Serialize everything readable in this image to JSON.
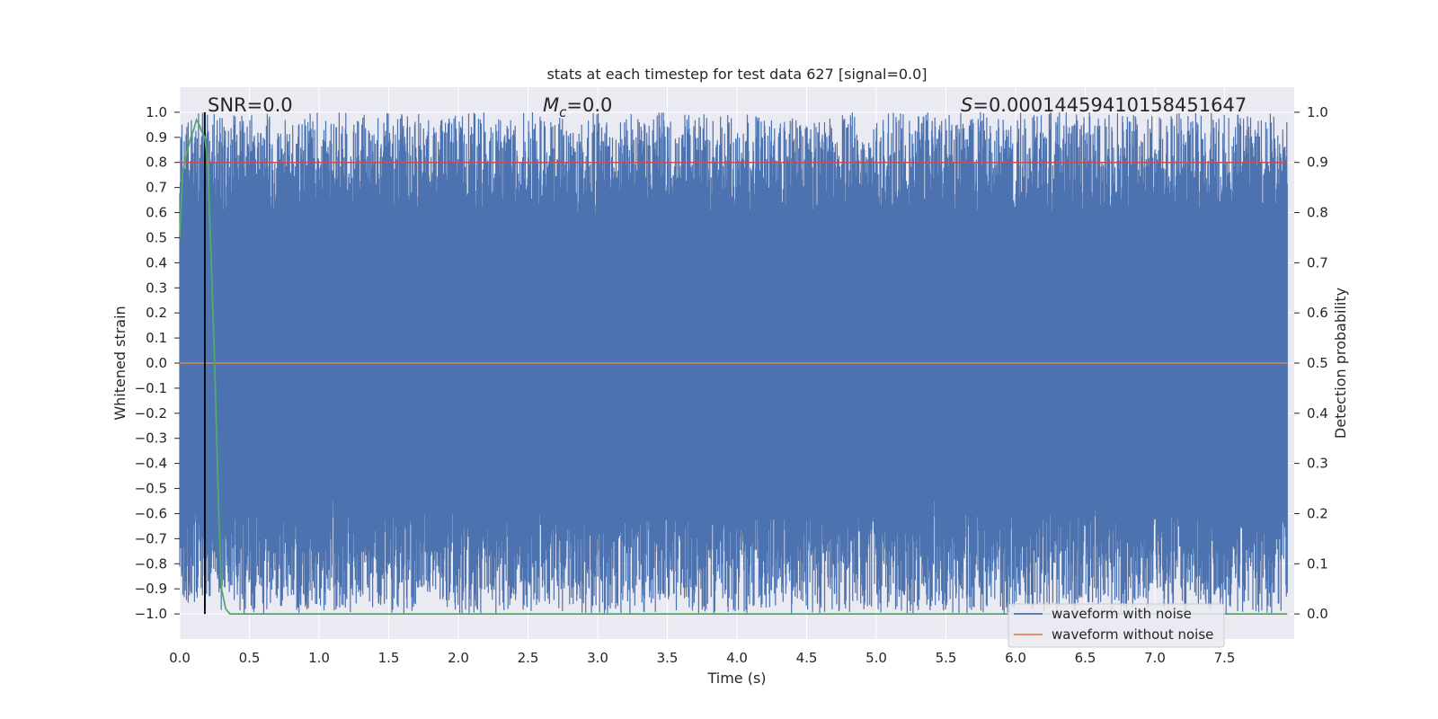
{
  "chart_data": {
    "type": "line",
    "title": "stats at each timestep for test data 627 [signal=0.0]",
    "xlabel": "Time (s)",
    "ylabel": "Whitened strain",
    "y2label": "Detection probability",
    "xlim": [
      0.0,
      8.0
    ],
    "ylim": [
      -1.1,
      1.1
    ],
    "y2lim": [
      -0.05,
      1.05
    ],
    "xticks": [
      "0.0",
      "0.5",
      "1.0",
      "1.5",
      "2.0",
      "2.5",
      "3.0",
      "3.5",
      "4.0",
      "4.5",
      "5.0",
      "5.5",
      "6.0",
      "6.5",
      "7.0",
      "7.5"
    ],
    "yticks": [
      "1.0",
      "0.9",
      "0.8",
      "0.7",
      "0.6",
      "0.5",
      "0.4",
      "0.3",
      "0.2",
      "0.1",
      "0.0",
      "−0.1",
      "−0.2",
      "−0.3",
      "−0.4",
      "−0.5",
      "−0.6",
      "−0.7",
      "−0.8",
      "−0.9",
      "−1.0"
    ],
    "y2ticks": [
      "1.0",
      "0.9",
      "0.8",
      "0.7",
      "0.6",
      "0.5",
      "0.4",
      "0.3",
      "0.2",
      "0.1",
      "0.0"
    ],
    "annotations": {
      "snr": "SNR=0.0",
      "mc_symbol": "M",
      "mc_sub": "c",
      "mc_value": "=0.0",
      "s_symbol": "S",
      "s_value": "=0.00014459410158451647"
    },
    "series": [
      {
        "name": "waveform with noise",
        "color": "#4c72b0",
        "description": "whitened noise strain filling roughly -1.0 to 1.0 across 0-8 s"
      },
      {
        "name": "waveform without noise",
        "color": "#dd8452",
        "y": 0.0
      },
      {
        "name": "detection probability",
        "axis": "right",
        "color": "#55a868",
        "x": [
          0.0,
          0.02,
          0.05,
          0.08,
          0.1,
          0.12,
          0.14,
          0.16,
          0.18,
          0.2,
          0.22,
          0.25,
          0.28,
          0.3,
          0.33,
          0.36,
          0.38,
          0.5,
          1.0,
          2.0,
          3.0,
          4.0,
          5.0,
          6.0,
          7.0,
          7.95
        ],
        "y": [
          0.75,
          0.88,
          0.92,
          0.95,
          0.965,
          0.985,
          0.975,
          0.96,
          0.95,
          0.9,
          0.75,
          0.5,
          0.2,
          0.05,
          0.01,
          0.0,
          0.0,
          0.0,
          0.0,
          0.0,
          0.0,
          0.0,
          0.0,
          0.0,
          0.0,
          0.0
        ]
      },
      {
        "name": "threshold",
        "axis": "right",
        "color": "#c44e52",
        "y": 0.9
      }
    ],
    "vline": {
      "x": 0.18,
      "color": "#000000"
    },
    "legend": {
      "position": "lower-right",
      "entries": [
        "waveform with noise",
        "waveform without noise"
      ]
    },
    "grid": true
  }
}
